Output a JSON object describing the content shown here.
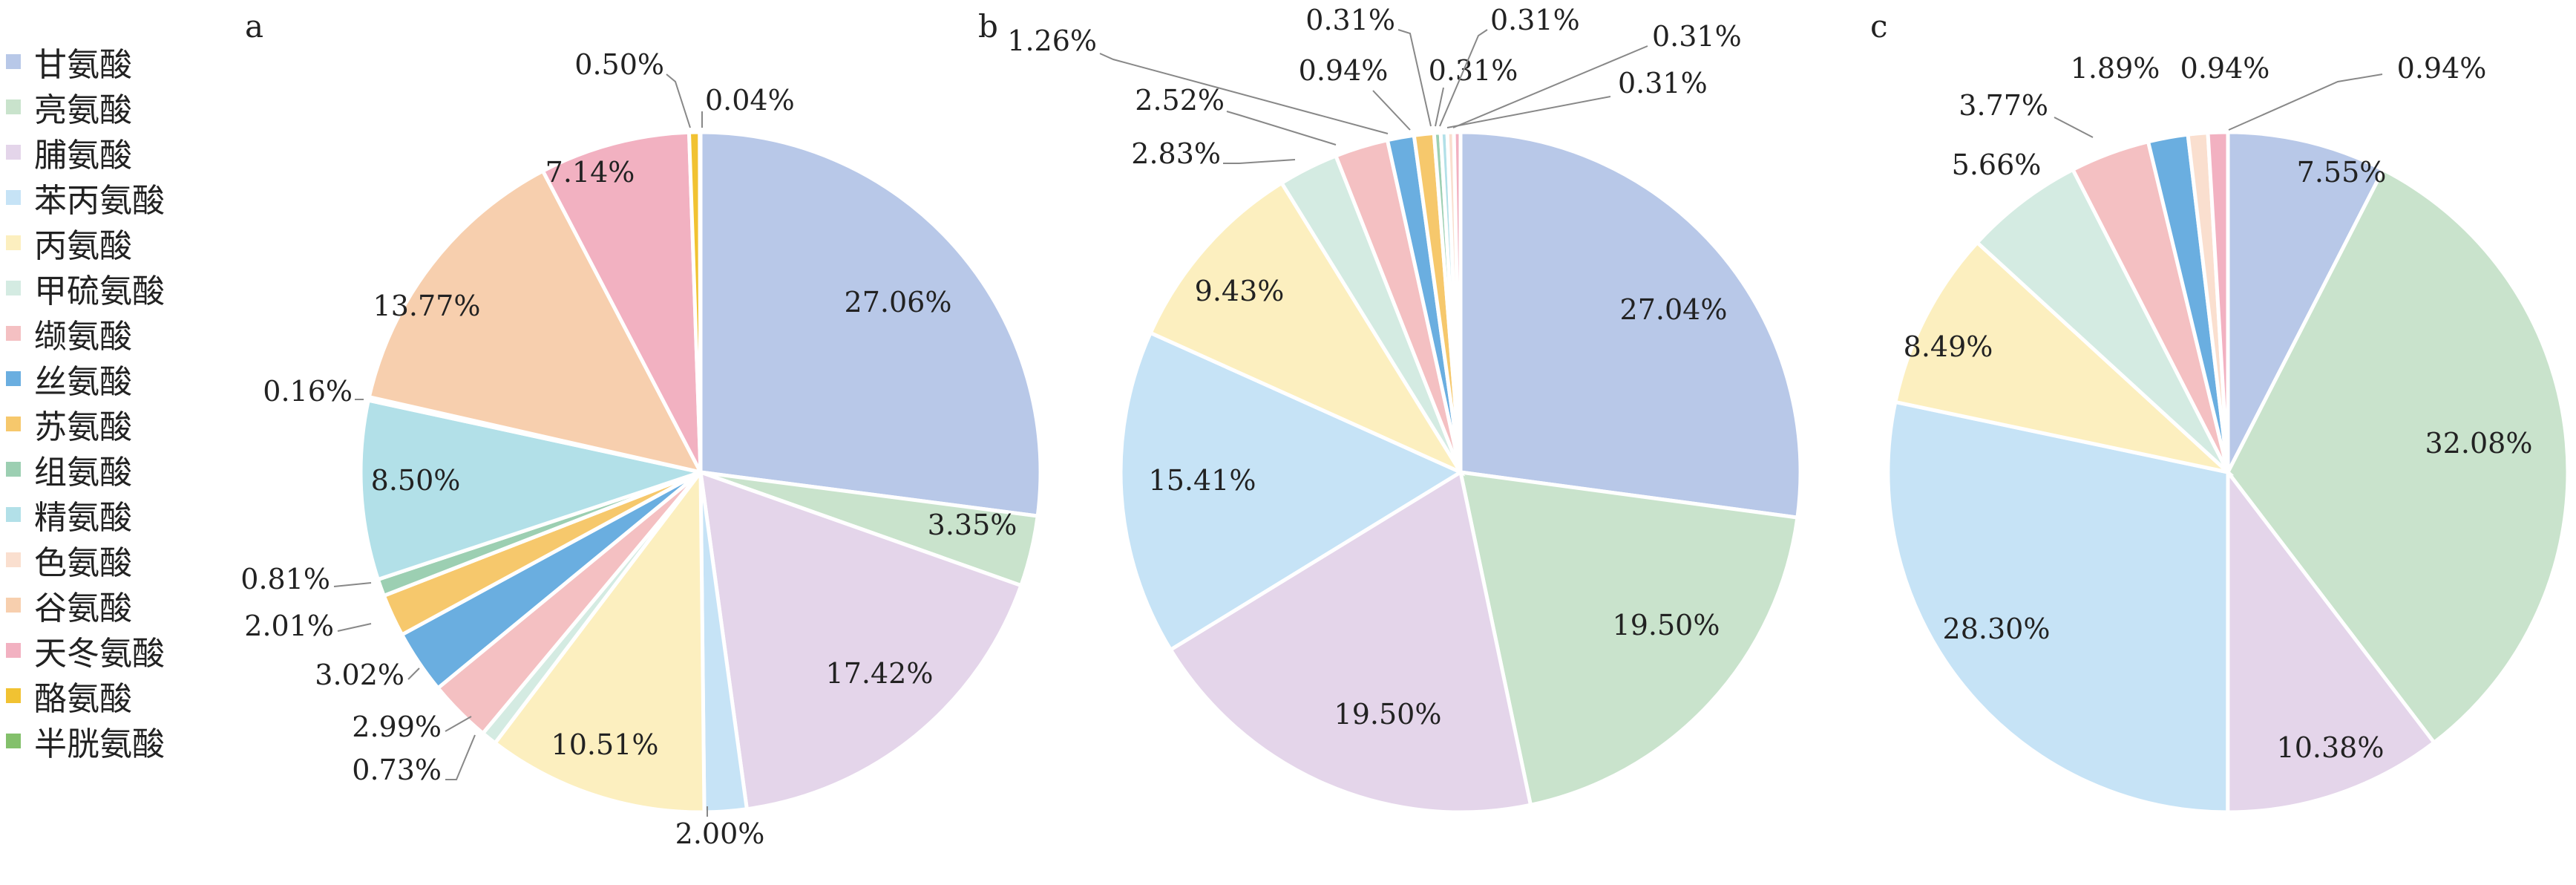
{
  "legend": [
    {
      "label": "甘氨酸",
      "color": "#b8c8e8"
    },
    {
      "label": "亮氨酸",
      "color": "#c9e3cc"
    },
    {
      "label": "脯氨酸",
      "color": "#e4d5ea"
    },
    {
      "label": "苯丙氨酸",
      "color": "#c6e3f6"
    },
    {
      "label": "丙氨酸",
      "color": "#fcefbf"
    },
    {
      "label": "甲硫氨酸",
      "color": "#d4ebe2"
    },
    {
      "label": "缬氨酸",
      "color": "#f4c0c2"
    },
    {
      "label": "丝氨酸",
      "color": "#6aaee0"
    },
    {
      "label": "苏氨酸",
      "color": "#f6c86c"
    },
    {
      "label": "组氨酸",
      "color": "#9ccfb2"
    },
    {
      "label": "精氨酸",
      "color": "#b2e0e8"
    },
    {
      "label": "色氨酸",
      "color": "#fadfcf"
    },
    {
      "label": "谷氨酸",
      "color": "#f7cfae"
    },
    {
      "label": "天冬氨酸",
      "color": "#f2b1c1"
    },
    {
      "label": "酪氨酸",
      "color": "#f1c232"
    },
    {
      "label": "半胱氨酸",
      "color": "#83c06b"
    }
  ],
  "chart_data": [
    {
      "type": "pie",
      "panel_label": "a",
      "slices": [
        {
          "category": "甘氨酸",
          "value": 27.06,
          "label": "27.06%"
        },
        {
          "category": "亮氨酸",
          "value": 3.35,
          "label": "3.35%"
        },
        {
          "category": "脯氨酸",
          "value": 17.42,
          "label": "17.42%"
        },
        {
          "category": "苯丙氨酸",
          "value": 2.0,
          "label": "2.00%"
        },
        {
          "category": "丙氨酸",
          "value": 10.51,
          "label": "10.51%"
        },
        {
          "category": "甲硫氨酸",
          "value": 0.73,
          "label": "0.73%"
        },
        {
          "category": "缬氨酸",
          "value": 2.99,
          "label": "2.99%"
        },
        {
          "category": "丝氨酸",
          "value": 3.02,
          "label": "3.02%"
        },
        {
          "category": "苏氨酸",
          "value": 2.01,
          "label": "2.01%"
        },
        {
          "category": "组氨酸",
          "value": 0.81,
          "label": "0.81%"
        },
        {
          "category": "精氨酸",
          "value": 8.5,
          "label": "8.50%"
        },
        {
          "category": "色氨酸",
          "value": 0.16,
          "label": "0.16%"
        },
        {
          "category": "谷氨酸",
          "value": 13.77,
          "label": "13.77%"
        },
        {
          "category": "天冬氨酸",
          "value": 7.14,
          "label": "7.14%"
        },
        {
          "category": "酪氨酸",
          "value": 0.5,
          "label": "0.50%"
        },
        {
          "category": "半胱氨酸",
          "value": 0.04,
          "label": "0.04%"
        }
      ]
    },
    {
      "type": "pie",
      "panel_label": "b",
      "slices": [
        {
          "category": "甘氨酸",
          "value": 27.04,
          "label": "27.04%"
        },
        {
          "category": "亮氨酸",
          "value": 19.5,
          "label": "19.50%"
        },
        {
          "category": "脯氨酸",
          "value": 19.5,
          "label": "19.50%"
        },
        {
          "category": "苯丙氨酸",
          "value": 15.41,
          "label": "15.41%"
        },
        {
          "category": "丙氨酸",
          "value": 9.43,
          "label": "9.43%"
        },
        {
          "category": "甲硫氨酸",
          "value": 2.83,
          "label": "2.83%"
        },
        {
          "category": "缬氨酸",
          "value": 2.52,
          "label": "2.52%"
        },
        {
          "category": "丝氨酸",
          "value": 1.26,
          "label": "1.26%"
        },
        {
          "category": "苏氨酸",
          "value": 0.94,
          "label": "0.94%"
        },
        {
          "category": "组氨酸",
          "value": 0.31,
          "label": "0.31%"
        },
        {
          "category": "精氨酸",
          "value": 0.31,
          "label": "0.31%"
        },
        {
          "category": "色氨酸",
          "value": 0.31,
          "label": "0.31%"
        },
        {
          "category": "天冬氨酸",
          "value": 0.31,
          "label": "0.31%"
        }
      ]
    },
    {
      "type": "pie",
      "panel_label": "c",
      "slices": [
        {
          "category": "甘氨酸",
          "value": 7.55,
          "label": "7.55%"
        },
        {
          "category": "亮氨酸",
          "value": 32.08,
          "label": "32.08%"
        },
        {
          "category": "脯氨酸",
          "value": 10.38,
          "label": "10.38%"
        },
        {
          "category": "苯丙氨酸",
          "value": 28.3,
          "label": "28.30%"
        },
        {
          "category": "丙氨酸",
          "value": 8.49,
          "label": "8.49%"
        },
        {
          "category": "甲硫氨酸",
          "value": 5.66,
          "label": "5.66%"
        },
        {
          "category": "缬氨酸",
          "value": 3.77,
          "label": "3.77%"
        },
        {
          "category": "丝氨酸",
          "value": 1.89,
          "label": "1.89%"
        },
        {
          "category": "色氨酸",
          "value": 0.94,
          "label": "0.94%"
        },
        {
          "category": "天冬氨酸",
          "value": 0.94,
          "label": "0.94%"
        }
      ]
    }
  ]
}
